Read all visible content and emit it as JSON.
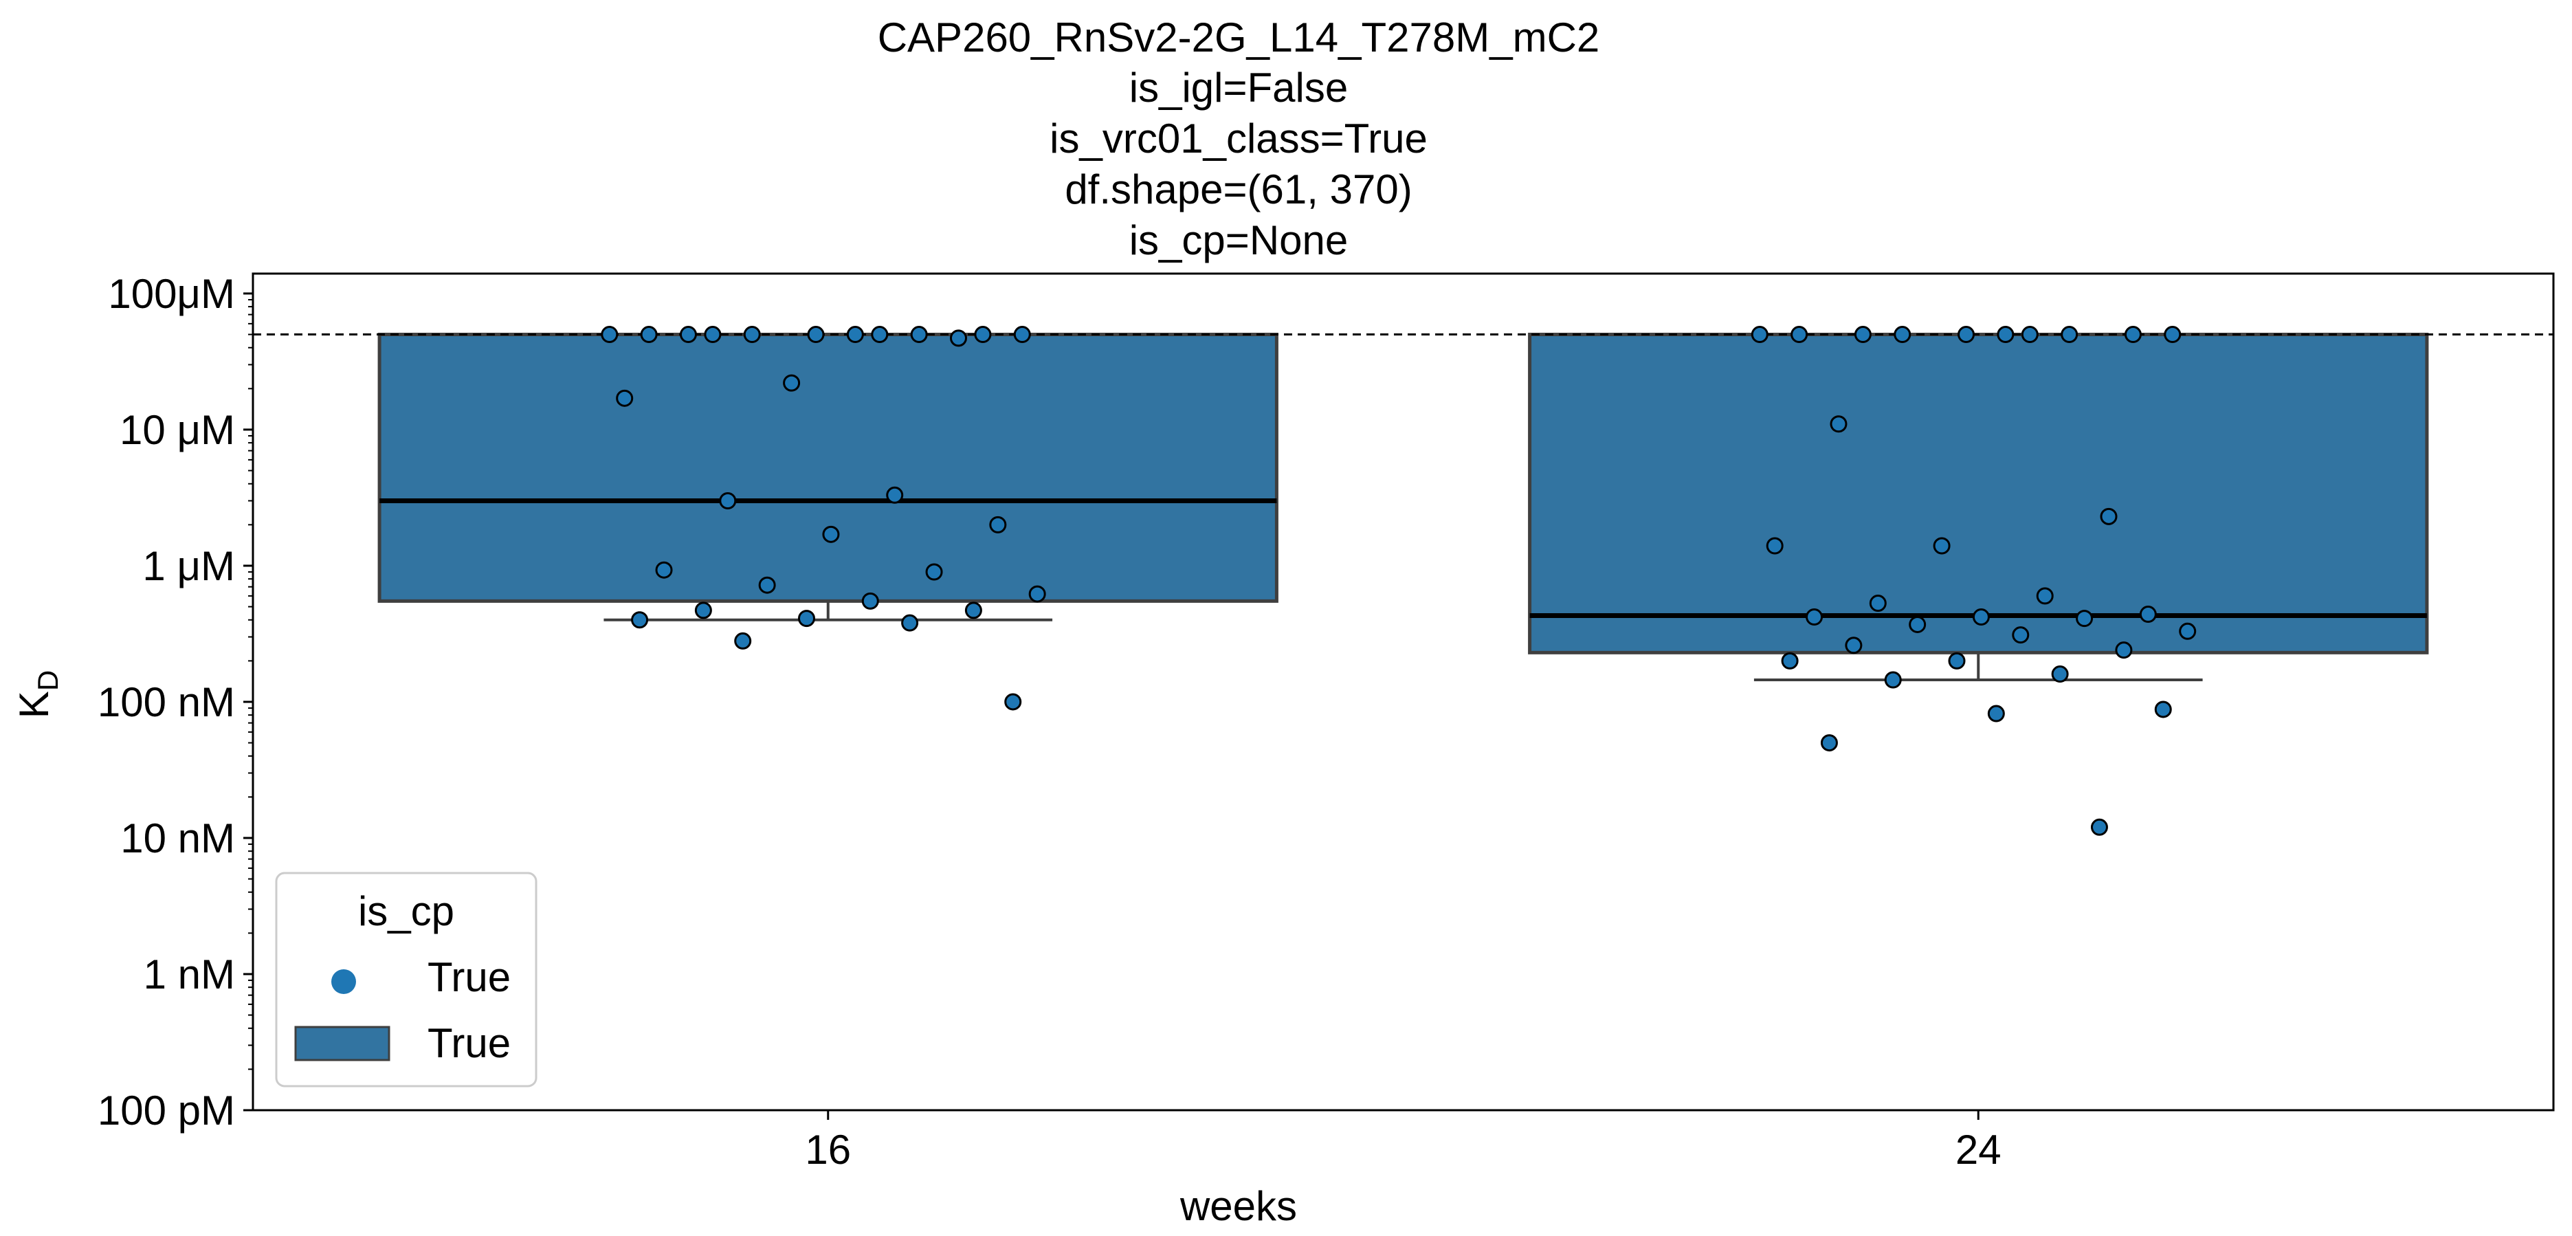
{
  "chart_data": {
    "type": "box+strip",
    "title_lines": [
      "CAP260_RnSv2-2G_L14_T278M_mC2",
      "is_igl=False",
      "is_vrc01_class=True",
      "df.shape=(61, 370)",
      "is_cp=None"
    ],
    "xlabel": "weeks",
    "ylabel": "K",
    "ylabel_subscript": "D",
    "y_scale": "log10",
    "ylim_molar": [
      1e-10,
      0.00014
    ],
    "y_ticks": [
      {
        "value": 0.0001,
        "label": "100μM"
      },
      {
        "value": 1e-05,
        "label": "10 μM"
      },
      {
        "value": 1e-06,
        "label": "1 μM"
      },
      {
        "value": 1e-07,
        "label": "100 nM"
      },
      {
        "value": 1e-08,
        "label": "10 nM"
      },
      {
        "value": 1e-09,
        "label": "1 nM"
      },
      {
        "value": 1e-10,
        "label": "100 pM"
      }
    ],
    "reference_line_molar": 5e-05,
    "categories": [
      "16",
      "24"
    ],
    "boxes": [
      {
        "category": "16",
        "q1": 5.5e-07,
        "median": 3e-06,
        "q3": 5e-05,
        "whisker_low": 4e-07,
        "whisker_high": 5e-05
      },
      {
        "category": "24",
        "q1": 2.3e-07,
        "median": 4.3e-07,
        "q3": 5e-05,
        "whisker_low": 1.45e-07,
        "whisker_high": 5e-05
      }
    ],
    "points": [
      {
        "category": "16",
        "y": [
          5e-05,
          5e-05,
          5e-05,
          5e-05,
          5e-05,
          5e-05,
          5e-05,
          5e-05,
          5e-05,
          5e-05,
          5e-05,
          4.7e-05,
          2.2e-05,
          1.7e-05,
          3.3e-06,
          3e-06,
          2e-06,
          1.7e-06,
          9.3e-07,
          9e-07,
          7.2e-07,
          6.2e-07,
          5.5e-07,
          4.7e-07,
          4.7e-07,
          4.1e-07,
          4e-07,
          3.8e-07,
          2.8e-07,
          1e-07
        ]
      },
      {
        "category": "24",
        "y": [
          5e-05,
          5e-05,
          5e-05,
          5e-05,
          5e-05,
          5e-05,
          5e-05,
          5e-05,
          5e-05,
          5e-05,
          1.1e-05,
          2.3e-06,
          1.4e-06,
          1.4e-06,
          6e-07,
          5.3e-07,
          4.4e-07,
          4.2e-07,
          4.2e-07,
          4.1e-07,
          3.7e-07,
          3.3e-07,
          3.1e-07,
          2.6e-07,
          2.4e-07,
          2e-07,
          2e-07,
          1.6e-07,
          1.45e-07,
          8.8e-08,
          8.2e-08,
          5e-08,
          1.2e-08
        ]
      }
    ],
    "legend": {
      "title": "is_cp",
      "entries": [
        {
          "marker": "point",
          "label": "True"
        },
        {
          "marker": "box",
          "label": "True"
        }
      ],
      "placement": "lower-left"
    },
    "colors": {
      "box_fill": "#3274a1",
      "box_edge": "#3f3f3f",
      "point_fill": "#1f77b4",
      "point_edge": "#000000",
      "median": "#000000",
      "reference_line": "#000000"
    }
  }
}
